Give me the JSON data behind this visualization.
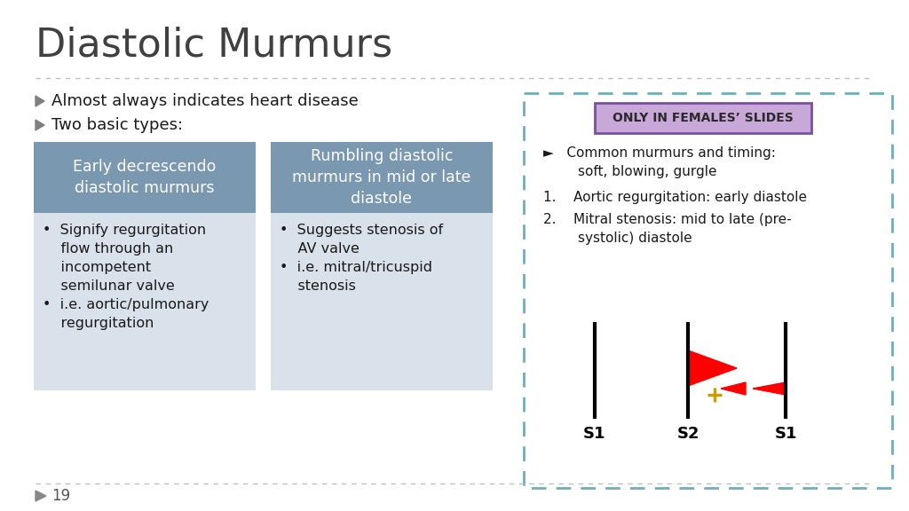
{
  "title": "Diastolic Murmurs",
  "title_fontsize": 32,
  "title_color": "#404040",
  "bg_color": "#ffffff",
  "bullet_color": "#7F7F7F",
  "bullet1": "Almost always indicates heart disease",
  "bullet2": "Two basic types:",
  "box1_header": "Early decrescendo\ndiastolic murmurs",
  "box2_header": "Rumbling diastolic\nmurmurs in mid or late\ndiastole",
  "box1_body": "•  Signify regurgitation\n    flow through an\n    incompetent\n    semilunar valve\n•  i.e. aortic/pulmonary\n    regurgitation",
  "box2_body": "•  Suggests stenosis of\n    AV valve\n•  i.e. mitral/tricuspid\n    stenosis",
  "box_header_color": "#7A98B0",
  "box_body_color": "#D9E2EA",
  "box_header_text_color": "#ffffff",
  "box_body_text_color": "#1a1a1a",
  "females_box_bg": "#C8A8D8",
  "females_box_border": "#7B4F9E",
  "females_box_text": "ONLY IN FEMALES’ SLIDES",
  "females_text_color": "#2a2a2a",
  "dashed_border_color": "#6AB0BC",
  "right_text1": "►   Common murmurs and timing:\n        soft, blowing, gurgle",
  "right_text2": "1.    Aortic regurgitation: early diastole",
  "right_text3": "2.    Mitral stenosis: mid to late (pre-\n        systolic) diastole",
  "s_labels": [
    "S1",
    "S2",
    "S1"
  ],
  "page_number": "19",
  "separator_color": "#c0c0c0"
}
